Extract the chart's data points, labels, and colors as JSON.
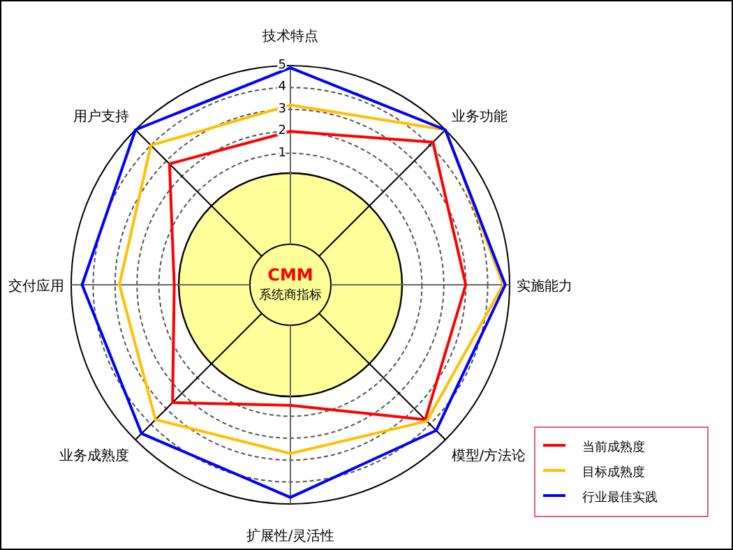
{
  "chart_data": {
    "type": "radar",
    "categories": [
      "技术特点",
      "业务功能",
      "实施能力",
      "模型/方法论",
      "扩展性/灵活性",
      "业务成熟度",
      "交付应用",
      "用户支持"
    ],
    "series": [
      {
        "name": "当前成熟度",
        "color": "#ff0000",
        "values": [
          2,
          4.2,
          3,
          3.7,
          0.5,
          2.6,
          0.3,
          2.8
        ]
      },
      {
        "name": "目标成熟度",
        "color": "#ffc000",
        "values": [
          3.2,
          5,
          4.7,
          3.8,
          2.7,
          3.7,
          2.8,
          4
        ]
      },
      {
        "name": "行业最佳实践",
        "color": "#0000ff",
        "values": [
          4.9,
          5,
          4.8,
          4.4,
          4.7,
          4.6,
          4.5,
          5
        ]
      }
    ],
    "ylim": [
      -5,
      5
    ],
    "yticks": [
      1,
      2,
      3,
      4,
      5
    ],
    "legend": "bottom right",
    "grid": true,
    "marker": "none",
    "line_style": "solid",
    "annotations": [
      "CMM",
      "系统商指标"
    ]
  }
}
